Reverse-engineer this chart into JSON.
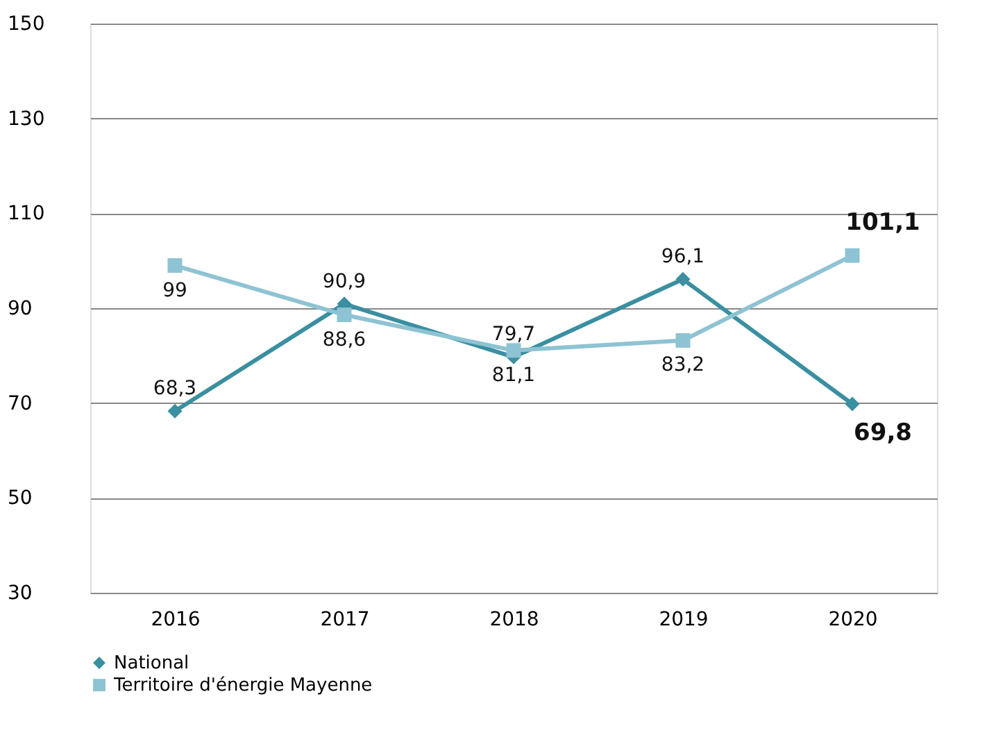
{
  "chart_data": {
    "type": "line",
    "categories": [
      "2016",
      "2017",
      "2018",
      "2019",
      "2020"
    ],
    "series": [
      {
        "name": "National",
        "color": "#3a8fa0",
        "marker": "diamond",
        "values": [
          68.3,
          90.9,
          79.7,
          96.1,
          69.8
        ],
        "value_labels": [
          "68,3",
          "90,9",
          "79,7",
          "96,1",
          "69,8"
        ]
      },
      {
        "name": "Territoire d'énergie Mayenne",
        "color": "#8ec3d3",
        "marker": "square",
        "values": [
          99,
          88.6,
          81.1,
          83.2,
          101.1
        ],
        "value_labels": [
          "99",
          "88,6",
          "81,1",
          "83,2",
          "101,1"
        ]
      }
    ],
    "ylim": [
      30,
      150
    ],
    "yticks": [
      30,
      50,
      70,
      90,
      110,
      130,
      150
    ],
    "grid": "y",
    "legend": "bottom",
    "line_style": "solid"
  }
}
